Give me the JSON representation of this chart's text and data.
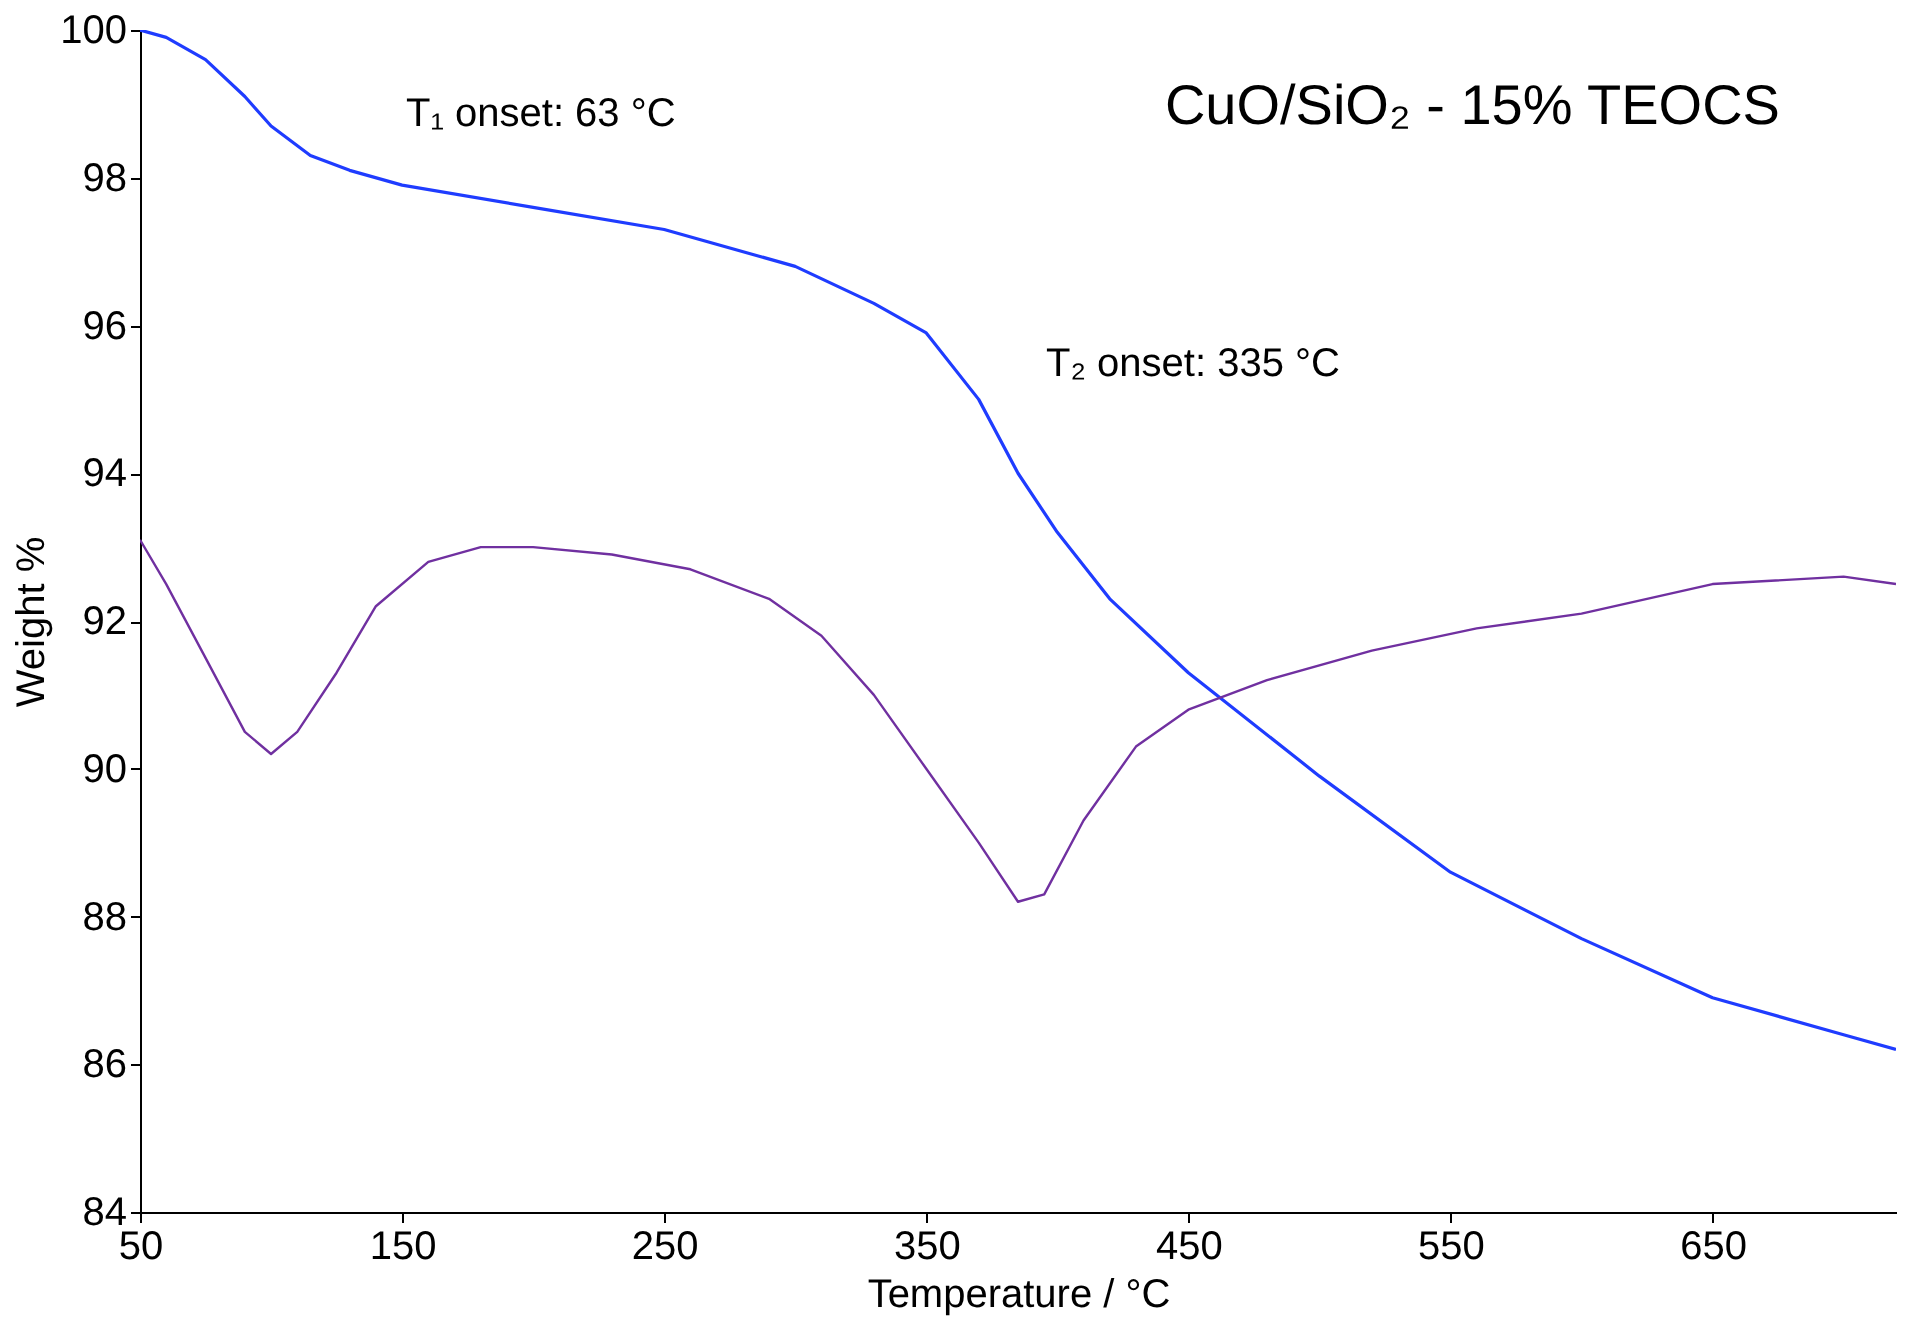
{
  "chart_data": {
    "type": "line",
    "xlabel": "Temperature / °C",
    "ylabel": "Weight %",
    "xlim": [
      50,
      720
    ],
    "xticks": [
      50,
      150,
      250,
      350,
      450,
      550,
      650
    ],
    "ylim": [
      84,
      100
    ],
    "yticks": [
      84,
      86,
      88,
      90,
      92,
      94,
      96,
      98,
      100
    ],
    "grid": false,
    "marker": "none",
    "line_style": "solid",
    "annotations": [
      "T₁ onset: 63 °C",
      "T₂ onset: 335 °C",
      "CuO/SiO₂ - 15% TEOCS"
    ],
    "series": [
      {
        "color": "#1f3cff",
        "x": [
          50,
          60,
          75,
          90,
          100,
          115,
          130,
          150,
          200,
          250,
          300,
          330,
          350,
          370,
          385,
          400,
          420,
          450,
          500,
          550,
          600,
          650,
          700,
          720
        ],
        "values": [
          100,
          99.9,
          99.6,
          99.1,
          98.7,
          98.3,
          98.1,
          97.9,
          97.6,
          97.3,
          96.8,
          96.3,
          95.9,
          95.0,
          94.0,
          93.2,
          92.3,
          91.3,
          89.9,
          88.6,
          87.7,
          86.9,
          86.4,
          86.2
        ]
      },
      {
        "color": "#7030a0",
        "x": [
          50,
          60,
          75,
          90,
          100,
          110,
          125,
          140,
          160,
          180,
          200,
          230,
          260,
          290,
          310,
          330,
          350,
          370,
          385,
          395,
          410,
          430,
          450,
          480,
          520,
          560,
          600,
          650,
          700,
          720
        ],
        "values": [
          93.1,
          92.5,
          91.5,
          90.5,
          90.2,
          90.5,
          91.3,
          92.2,
          92.8,
          93.0,
          93.0,
          92.9,
          92.7,
          92.3,
          91.8,
          91.0,
          90.0,
          89.0,
          88.2,
          88.3,
          89.3,
          90.3,
          90.8,
          91.2,
          91.6,
          91.9,
          92.1,
          92.5,
          92.6,
          92.5
        ]
      }
    ]
  }
}
